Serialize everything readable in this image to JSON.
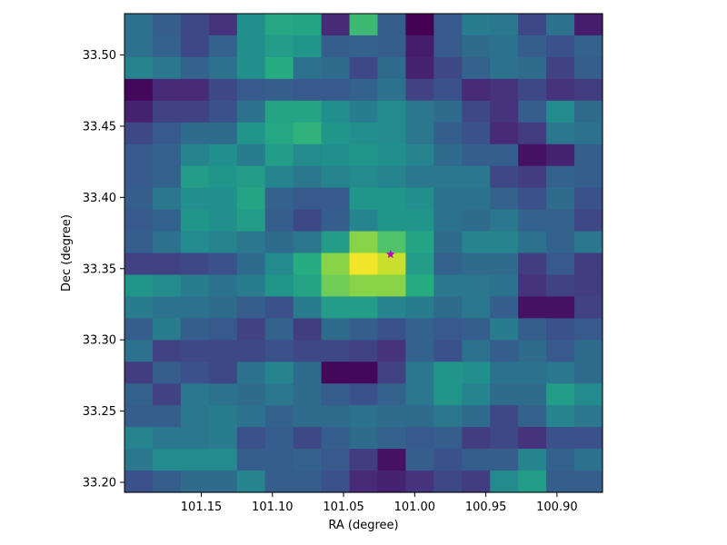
{
  "chart_data": {
    "type": "heatmap",
    "title": "",
    "xlabel": "RA (degree)",
    "ylabel": "Dec (degree)",
    "xlim": [
      101.204,
      100.868
    ],
    "ylim": [
      33.193,
      33.529
    ],
    "x_inverted": true,
    "xticks": [
      101.15,
      101.1,
      101.05,
      101.0,
      100.95,
      100.9
    ],
    "xtick_labels": [
      "101.15",
      "101.10",
      "101.05",
      "101.00",
      "100.95",
      "100.90"
    ],
    "yticks": [
      33.2,
      33.25,
      33.3,
      33.35,
      33.4,
      33.45,
      33.5
    ],
    "ytick_labels": [
      "33.20",
      "33.25",
      "33.30",
      "33.35",
      "33.40",
      "33.45",
      "33.50"
    ],
    "colormap": "viridis",
    "grid": false,
    "marker": {
      "ra": 101.017,
      "dec": 33.36,
      "symbol": "star",
      "color": "#bf00bf"
    },
    "values": [
      [
        0.38,
        0.3,
        0.22,
        0.15,
        0.5,
        0.6,
        0.58,
        0.12,
        0.68,
        0.3,
        0.0,
        0.28,
        0.42,
        0.4,
        0.22,
        0.38,
        0.08
      ],
      [
        0.38,
        0.32,
        0.22,
        0.32,
        0.5,
        0.55,
        0.52,
        0.3,
        0.32,
        0.3,
        0.08,
        0.28,
        0.35,
        0.38,
        0.3,
        0.25,
        0.32
      ],
      [
        0.45,
        0.4,
        0.32,
        0.38,
        0.5,
        0.62,
        0.38,
        0.35,
        0.22,
        0.35,
        0.1,
        0.22,
        0.32,
        0.38,
        0.35,
        0.2,
        0.3
      ],
      [
        0.02,
        0.12,
        0.12,
        0.22,
        0.28,
        0.3,
        0.28,
        0.28,
        0.32,
        0.38,
        0.2,
        0.25,
        0.12,
        0.15,
        0.22,
        0.15,
        0.18
      ],
      [
        0.1,
        0.2,
        0.2,
        0.25,
        0.38,
        0.58,
        0.58,
        0.5,
        0.42,
        0.48,
        0.4,
        0.35,
        0.22,
        0.15,
        0.3,
        0.48,
        0.35
      ],
      [
        0.22,
        0.28,
        0.35,
        0.35,
        0.52,
        0.6,
        0.65,
        0.52,
        0.5,
        0.48,
        0.4,
        0.3,
        0.25,
        0.12,
        0.18,
        0.4,
        0.38
      ],
      [
        0.28,
        0.32,
        0.45,
        0.5,
        0.42,
        0.55,
        0.48,
        0.5,
        0.52,
        0.5,
        0.45,
        0.35,
        0.3,
        0.3,
        0.05,
        0.1,
        0.3
      ],
      [
        0.28,
        0.32,
        0.55,
        0.52,
        0.55,
        0.45,
        0.4,
        0.45,
        0.48,
        0.45,
        0.4,
        0.4,
        0.4,
        0.22,
        0.18,
        0.32,
        0.3
      ],
      [
        0.3,
        0.4,
        0.5,
        0.5,
        0.58,
        0.32,
        0.28,
        0.28,
        0.52,
        0.52,
        0.5,
        0.38,
        0.38,
        0.32,
        0.25,
        0.35,
        0.25
      ],
      [
        0.28,
        0.32,
        0.52,
        0.5,
        0.55,
        0.3,
        0.22,
        0.3,
        0.45,
        0.52,
        0.52,
        0.38,
        0.35,
        0.4,
        0.32,
        0.32,
        0.22
      ],
      [
        0.3,
        0.38,
        0.48,
        0.45,
        0.4,
        0.35,
        0.4,
        0.55,
        0.82,
        0.72,
        0.58,
        0.35,
        0.45,
        0.45,
        0.38,
        0.32,
        0.4
      ],
      [
        0.2,
        0.2,
        0.22,
        0.25,
        0.35,
        0.48,
        0.62,
        0.82,
        0.98,
        0.92,
        0.55,
        0.32,
        0.35,
        0.35,
        0.18,
        0.28,
        0.18
      ],
      [
        0.52,
        0.48,
        0.42,
        0.38,
        0.42,
        0.52,
        0.58,
        0.78,
        0.82,
        0.82,
        0.62,
        0.4,
        0.4,
        0.38,
        0.15,
        0.2,
        0.18
      ],
      [
        0.42,
        0.38,
        0.38,
        0.35,
        0.3,
        0.25,
        0.42,
        0.55,
        0.55,
        0.45,
        0.42,
        0.35,
        0.4,
        0.3,
        0.05,
        0.05,
        0.2
      ],
      [
        0.3,
        0.42,
        0.3,
        0.28,
        0.2,
        0.32,
        0.18,
        0.35,
        0.3,
        0.25,
        0.32,
        0.28,
        0.3,
        0.42,
        0.3,
        0.25,
        0.28
      ],
      [
        0.38,
        0.2,
        0.22,
        0.22,
        0.22,
        0.25,
        0.22,
        0.22,
        0.2,
        0.15,
        0.32,
        0.25,
        0.38,
        0.3,
        0.35,
        0.28,
        0.35
      ],
      [
        0.18,
        0.3,
        0.25,
        0.22,
        0.38,
        0.45,
        0.35,
        0.02,
        0.02,
        0.2,
        0.4,
        0.52,
        0.5,
        0.38,
        0.38,
        0.4,
        0.35
      ],
      [
        0.32,
        0.2,
        0.4,
        0.38,
        0.35,
        0.4,
        0.35,
        0.3,
        0.25,
        0.32,
        0.4,
        0.52,
        0.45,
        0.35,
        0.35,
        0.55,
        0.48
      ],
      [
        0.3,
        0.3,
        0.4,
        0.42,
        0.38,
        0.32,
        0.35,
        0.35,
        0.38,
        0.35,
        0.35,
        0.4,
        0.35,
        0.22,
        0.32,
        0.45,
        0.4
      ],
      [
        0.45,
        0.4,
        0.4,
        0.42,
        0.25,
        0.3,
        0.22,
        0.3,
        0.35,
        0.32,
        0.28,
        0.3,
        0.18,
        0.22,
        0.15,
        0.25,
        0.25
      ],
      [
        0.4,
        0.48,
        0.48,
        0.48,
        0.3,
        0.3,
        0.32,
        0.28,
        0.18,
        0.05,
        0.3,
        0.25,
        0.3,
        0.3,
        0.45,
        0.32,
        0.38
      ],
      [
        0.25,
        0.3,
        0.35,
        0.35,
        0.45,
        0.3,
        0.3,
        0.25,
        0.12,
        0.1,
        0.15,
        0.22,
        0.18,
        0.48,
        0.55,
        0.3,
        0.3
      ]
    ]
  }
}
